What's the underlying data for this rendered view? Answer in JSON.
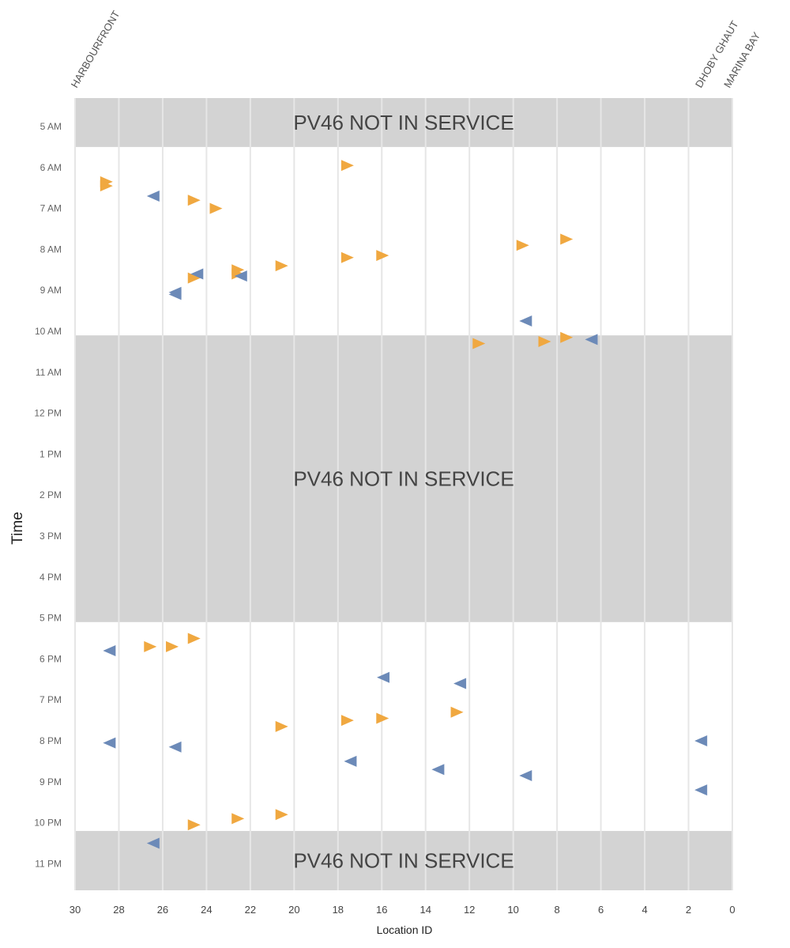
{
  "chart_data": {
    "type": "scatter",
    "title": "",
    "xlabel": "Location ID",
    "ylabel": "Time",
    "xlim": [
      30,
      0
    ],
    "x_ticks": [
      "30",
      "28",
      "26",
      "24",
      "22",
      "20",
      "18",
      "16",
      "14",
      "12",
      "10",
      "8",
      "6",
      "4",
      "2",
      "0"
    ],
    "y_ticks": [
      "5 AM",
      "6 AM",
      "7 AM",
      "8 AM",
      "9 AM",
      "10 AM",
      "11 AM",
      "12 PM",
      "1 PM",
      "2 PM",
      "3 PM",
      "4 PM",
      "5 PM",
      "6 PM",
      "7 PM",
      "8 PM",
      "9 PM",
      "10 PM",
      "11 PM"
    ],
    "grid": true,
    "station_labels": [
      {
        "location": 30,
        "label": "HARBOURFRONT"
      },
      {
        "location": 1.5,
        "label": "DHOBY GHAUT"
      },
      {
        "location": 0.2,
        "label": "MARINA BAY"
      }
    ],
    "not_in_service": [
      {
        "label": "PV46 NOT IN SERVICE",
        "from_hour": 4.3,
        "to_hour": 5.5
      },
      {
        "label": "PV46 NOT IN SERVICE",
        "from_hour": 10.1,
        "to_hour": 17.1
      },
      {
        "label": "PV46 NOT IN SERVICE",
        "from_hour": 22.2,
        "to_hour": 23.7
      }
    ],
    "colors": {
      "toward_marina_bay": "#f0a840",
      "toward_harbourfront": "#6c8ab8",
      "band": "#d3d3d3",
      "grid": "#e6e6e6"
    },
    "series": [
      {
        "direction": "right",
        "color": "#f0a840",
        "points": [
          [
            28.6,
            6.35
          ],
          [
            28.6,
            6.45
          ],
          [
            24.6,
            6.8
          ],
          [
            23.6,
            7.0
          ],
          [
            17.6,
            5.95
          ],
          [
            24.6,
            8.7
          ],
          [
            22.6,
            8.5
          ],
          [
            22.6,
            8.6
          ],
          [
            20.6,
            8.4
          ],
          [
            17.6,
            8.2
          ],
          [
            16.0,
            8.15
          ],
          [
            9.6,
            7.9
          ],
          [
            7.6,
            7.75
          ],
          [
            11.6,
            10.3
          ],
          [
            8.6,
            10.25
          ],
          [
            7.6,
            10.15
          ],
          [
            26.6,
            17.7
          ],
          [
            25.6,
            17.7
          ],
          [
            24.6,
            17.5
          ],
          [
            20.6,
            19.65
          ],
          [
            17.6,
            19.5
          ],
          [
            16.0,
            19.45
          ],
          [
            12.6,
            19.3
          ],
          [
            24.6,
            22.05
          ],
          [
            22.6,
            21.9
          ],
          [
            20.6,
            21.8
          ]
        ]
      },
      {
        "direction": "left",
        "color": "#6c8ab8",
        "points": [
          [
            26.4,
            6.7
          ],
          [
            24.4,
            8.6
          ],
          [
            22.4,
            8.65
          ],
          [
            25.4,
            9.05
          ],
          [
            25.4,
            9.1
          ],
          [
            9.4,
            9.75
          ],
          [
            6.4,
            10.2
          ],
          [
            28.4,
            17.8
          ],
          [
            15.9,
            18.45
          ],
          [
            12.4,
            18.6
          ],
          [
            28.4,
            20.05
          ],
          [
            25.4,
            20.15
          ],
          [
            1.4,
            20.0
          ],
          [
            17.4,
            20.5
          ],
          [
            13.4,
            20.7
          ],
          [
            9.4,
            20.85
          ],
          [
            1.4,
            21.2
          ],
          [
            26.4,
            22.5
          ]
        ]
      }
    ]
  }
}
